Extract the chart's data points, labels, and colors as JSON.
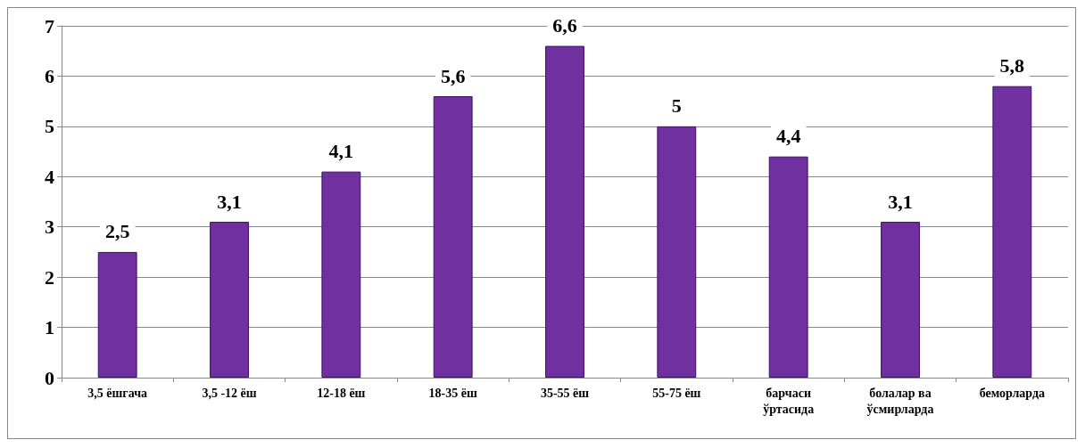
{
  "chart_data": {
    "type": "bar",
    "categories": [
      "3,5 ёшгача",
      "3,5 -12 ёш",
      "12-18 ёш",
      "18-35 ёш",
      "35-55 ёш",
      "55-75 ёш",
      "барчаси\nўртасида",
      "болалар ва\nўсмирларда",
      "беморларда"
    ],
    "values": [
      2.5,
      3.1,
      4.1,
      5.6,
      6.6,
      5,
      4.4,
      3.1,
      5.8
    ],
    "value_labels": [
      "2,5",
      "3,1",
      "4,1",
      "5,6",
      "6,6",
      "5",
      "4,4",
      "3,1",
      "5,8"
    ],
    "color": "#7030a0",
    "ylim": [
      0,
      7
    ],
    "yticks": [
      0,
      1,
      2,
      3,
      4,
      5,
      6,
      7
    ],
    "grid": "y"
  }
}
